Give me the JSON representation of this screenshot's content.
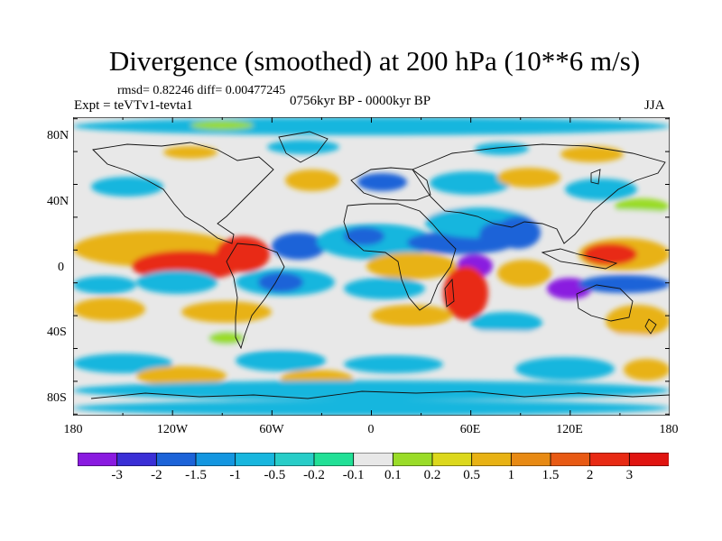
{
  "title": "Divergence (smoothed) at 200 hPa (10**6 m/s)",
  "stats": "rmsd= 0.82246 diff= 0.00477245",
  "experiment": "Expt = teVTv1-tevta1",
  "period": "0756kyr BP - 0000kyr BP",
  "season": "JJA",
  "lat_labels": [
    "80N",
    "40N",
    "0",
    "40S",
    "80S"
  ],
  "lon_labels": [
    "180",
    "120W",
    "60W",
    "0",
    "60E",
    "120E",
    "180"
  ],
  "colorbar": {
    "labels": [
      "-3",
      "-2",
      "-1.5",
      "-1",
      "-0.5",
      "-0.2",
      "-0.1",
      "0.1",
      "0.2",
      "0.5",
      "1",
      "1.5",
      "2",
      "3"
    ],
    "colors": [
      "#8a1ae0",
      "#3a2fd6",
      "#1c63d8",
      "#1496e0",
      "#18b6de",
      "#28cdc8",
      "#22e096",
      "#e8e8e8",
      "#9adc28",
      "#dcd81c",
      "#e8b214",
      "#e88a14",
      "#e85a14",
      "#e82a14",
      "#e01410"
    ]
  },
  "field_colors": {
    "strong_negative": "#8a1ae0",
    "negative": "#1c63d8",
    "weak_negative": "#18b6de",
    "near_zero": "#e8e8e8",
    "weak_positive": "#9adc28",
    "positive": "#e8b214",
    "strong_positive": "#e82a14",
    "coastline": "#111111"
  }
}
